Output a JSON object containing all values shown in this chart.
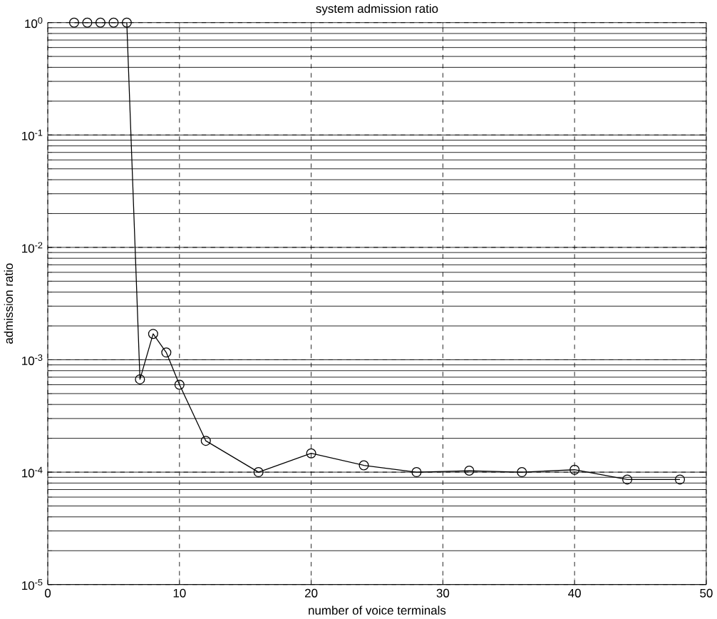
{
  "chart_data": {
    "type": "line",
    "title": "system admission ratio",
    "xlabel": "number of voice terminals",
    "ylabel": "admission ratio",
    "log": "y",
    "grid": true,
    "marker": "circle",
    "line_style": "solid",
    "xlim": [
      0,
      50
    ],
    "xticks": [
      0,
      10,
      20,
      30,
      40,
      50
    ],
    "ylim": [
      1e-05,
      1
    ],
    "yticks": [
      {
        "value": 1e-05,
        "label": "10$^{-5}$"
      },
      {
        "value": 0.0001,
        "label": "10$^{-4}$"
      },
      {
        "value": 0.001,
        "label": "10$^{-3}$"
      },
      {
        "value": 0.01,
        "label": "10$^{-2}$"
      },
      {
        "value": 0.1,
        "label": "10$^{-1}$"
      },
      {
        "value": 1,
        "label": "10$^{0}$"
      }
    ],
    "x": [
      2,
      3,
      4,
      5,
      6,
      7,
      8,
      9,
      10,
      12,
      16,
      20,
      24,
      28,
      32,
      36,
      40,
      44,
      48
    ],
    "series": [
      {
        "color": "#000000",
        "values": [
          1,
          1,
          1,
          1,
          1,
          0.00067,
          0.0017,
          0.00116,
          0.0006,
          0.00019,
          0.0001,
          0.000147,
          0.000115,
          0.0001,
          0.000103,
          0.0001,
          0.000105,
          8.6e-05,
          8.6e-05
        ]
      }
    ]
  }
}
